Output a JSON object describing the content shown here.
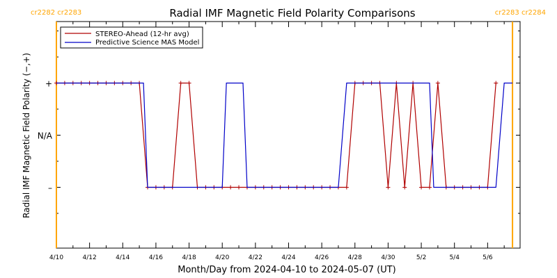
{
  "chart_data": {
    "type": "line",
    "title": "Radial IMF Magnetic Field Polarity Comparisons",
    "xlabel": "Month/Day from 2024-04-10 to 2024-05-07 (UT)",
    "ylabel": "Radial IMF Magnetic Field Polarity (−,+)",
    "x_range": [
      "2024-04-10T00:00",
      "2024-05-07T23:00"
    ],
    "y_ticks": [
      {
        "value": 1,
        "label": "+"
      },
      {
        "value": 0,
        "label": "N/A"
      },
      {
        "value": -1,
        "label": "–"
      }
    ],
    "x_ticks": [
      "4/10",
      "4/12",
      "4/14",
      "4/16",
      "4/18",
      "4/20",
      "4/22",
      "4/24",
      "4/26",
      "4/28",
      "4/30",
      "5/2",
      "5/4",
      "5/6"
    ],
    "carrington_markers": [
      {
        "date": "2024-04-10T00:00",
        "labels": [
          "cr2282",
          "cr2283"
        ],
        "color": "#ffa500",
        "corner": "left"
      },
      {
        "date": "2024-05-07T12:00",
        "labels": [
          "cr2283",
          "cr2284"
        ],
        "color": "#ffa500",
        "corner": "right"
      }
    ],
    "legend": {
      "placement": "top-left"
    },
    "series": [
      {
        "name": "STEREO-Ahead (12-hr avg)",
        "color": "#b00000",
        "markers": true,
        "points": [
          [
            "2024-04-10T00:00",
            1
          ],
          [
            "2024-04-10T12:00",
            1
          ],
          [
            "2024-04-11T00:00",
            1
          ],
          [
            "2024-04-11T12:00",
            1
          ],
          [
            "2024-04-12T00:00",
            1
          ],
          [
            "2024-04-12T12:00",
            1
          ],
          [
            "2024-04-13T00:00",
            1
          ],
          [
            "2024-04-13T12:00",
            1
          ],
          [
            "2024-04-14T00:00",
            1
          ],
          [
            "2024-04-14T12:00",
            1
          ],
          [
            "2024-04-15T00:00",
            1
          ],
          [
            "2024-04-15T12:00",
            -1
          ],
          [
            "2024-04-16T00:00",
            -1
          ],
          [
            "2024-04-16T12:00",
            -1
          ],
          [
            "2024-04-17T00:00",
            -1
          ],
          [
            "2024-04-17T12:00",
            1
          ],
          [
            "2024-04-18T00:00",
            1
          ],
          [
            "2024-04-18T12:00",
            -1
          ],
          [
            "2024-04-19T00:00",
            -1
          ],
          [
            "2024-04-19T12:00",
            -1
          ],
          [
            "2024-04-20T00:00",
            -1
          ],
          [
            "2024-04-20T12:00",
            -1
          ],
          [
            "2024-04-21T00:00",
            -1
          ],
          [
            "2024-04-21T12:00",
            -1
          ],
          [
            "2024-04-22T00:00",
            -1
          ],
          [
            "2024-04-22T12:00",
            -1
          ],
          [
            "2024-04-23T00:00",
            -1
          ],
          [
            "2024-04-23T12:00",
            -1
          ],
          [
            "2024-04-24T00:00",
            -1
          ],
          [
            "2024-04-24T12:00",
            -1
          ],
          [
            "2024-04-25T00:00",
            -1
          ],
          [
            "2024-04-25T12:00",
            -1
          ],
          [
            "2024-04-26T00:00",
            -1
          ],
          [
            "2024-04-26T12:00",
            -1
          ],
          [
            "2024-04-27T00:00",
            -1
          ],
          [
            "2024-04-27T12:00",
            -1
          ],
          [
            "2024-04-28T00:00",
            1
          ],
          [
            "2024-04-28T12:00",
            1
          ],
          [
            "2024-04-29T00:00",
            1
          ],
          [
            "2024-04-29T12:00",
            1
          ],
          [
            "2024-04-30T00:00",
            -1
          ],
          [
            "2024-04-30T12:00",
            1
          ],
          [
            "2024-05-01T00:00",
            -1
          ],
          [
            "2024-05-01T12:00",
            1
          ],
          [
            "2024-05-02T00:00",
            -1
          ],
          [
            "2024-05-02T12:00",
            -1
          ],
          [
            "2024-05-03T00:00",
            1
          ],
          [
            "2024-05-03T12:00",
            -1
          ],
          [
            "2024-05-04T00:00",
            -1
          ],
          [
            "2024-05-04T12:00",
            -1
          ],
          [
            "2024-05-05T00:00",
            -1
          ],
          [
            "2024-05-05T12:00",
            -1
          ],
          [
            "2024-05-06T00:00",
            -1
          ],
          [
            "2024-05-06T12:00",
            1
          ]
        ]
      },
      {
        "name": "Predictive Science MAS Model",
        "color": "#0000c8",
        "markers": false,
        "points": [
          [
            "2024-04-10T00:00",
            1
          ],
          [
            "2024-04-15T06:00",
            1
          ],
          [
            "2024-04-15T12:00",
            -1
          ],
          [
            "2024-04-20T00:00",
            -1
          ],
          [
            "2024-04-20T06:00",
            1
          ],
          [
            "2024-04-21T06:00",
            1
          ],
          [
            "2024-04-21T12:00",
            -1
          ],
          [
            "2024-04-27T00:00",
            -1
          ],
          [
            "2024-04-27T12:00",
            1
          ],
          [
            "2024-05-02T12:00",
            1
          ],
          [
            "2024-05-02T18:00",
            -1
          ],
          [
            "2024-05-06T12:00",
            -1
          ],
          [
            "2024-05-07T00:00",
            1
          ],
          [
            "2024-05-07T12:00",
            1
          ]
        ]
      }
    ]
  }
}
